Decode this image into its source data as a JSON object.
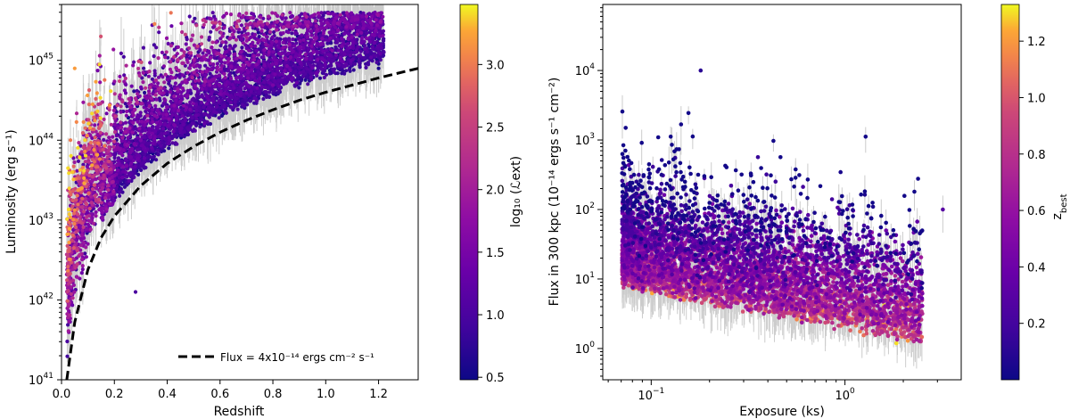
{
  "chart_data": [
    {
      "type": "scatter",
      "xlabel": "Redshift",
      "ylabel": "Luminosity (erg s⁻¹)",
      "xlim": [
        0.0,
        1.35
      ],
      "ylim_log10": [
        41,
        45.7
      ],
      "y_scale": "log",
      "x_ticks": [
        "0.0",
        "0.2",
        "0.4",
        "0.6",
        "0.8",
        "1.0",
        "1.2"
      ],
      "x_tick_values": [
        0,
        0.2,
        0.4,
        0.6,
        0.8,
        1.0,
        1.2
      ],
      "y_ticks": [
        "10",
        "10",
        "10",
        "10",
        "10"
      ],
      "y_tick_exponents": [
        "41",
        "42",
        "43",
        "44",
        "45"
      ],
      "y_tick_values": [
        41,
        42,
        43,
        44,
        45
      ],
      "colorbar": {
        "label": "log₁₀ (ℒext)",
        "range": [
          0.48,
          3.48
        ],
        "ticks": [
          "0.5",
          "1.0",
          "1.5",
          "2.0",
          "2.5",
          "3.0"
        ],
        "tick_values": [
          0.5,
          1.0,
          1.5,
          2.0,
          2.5,
          3.0
        ],
        "colormap": "plasma"
      },
      "legend": {
        "placement": "lower-right",
        "label": "Flux = 4x10⁻¹⁴ ergs cm⁻² s⁻¹"
      },
      "flux_line_points": [
        [
          0.02,
          41.0
        ],
        [
          0.05,
          41.72
        ],
        [
          0.1,
          42.38
        ],
        [
          0.15,
          42.78
        ],
        [
          0.2,
          43.05
        ],
        [
          0.3,
          43.43
        ],
        [
          0.4,
          43.71
        ],
        [
          0.5,
          43.92
        ],
        [
          0.6,
          44.1
        ],
        [
          0.7,
          44.25
        ],
        [
          0.8,
          44.38
        ],
        [
          0.9,
          44.5
        ],
        [
          1.0,
          44.6
        ],
        [
          1.1,
          44.69
        ],
        [
          1.2,
          44.78
        ],
        [
          1.3,
          44.86
        ],
        [
          1.35,
          44.9
        ]
      ],
      "points_description": "~ thousands of cluster detections",
      "sample_points": [
        [
          0.05,
          42.8,
          1.2
        ],
        [
          0.1,
          43.5,
          2.0
        ],
        [
          0.15,
          44.2,
          2.8
        ],
        [
          0.3,
          44.0,
          1.5
        ],
        [
          0.5,
          44.4,
          1.0
        ],
        [
          0.8,
          44.7,
          0.7
        ],
        [
          1.2,
          44.9,
          0.6
        ],
        [
          0.28,
          42.1,
          1.0
        ],
        [
          0.05,
          44.9,
          3.2
        ]
      ]
    },
    {
      "type": "scatter",
      "xlabel": "Exposure (ks)",
      "ylabel": "Flux in 300 kpc (10⁻¹⁴ ergs s⁻¹ cm⁻²)",
      "x_scale": "log",
      "y_scale": "log",
      "xlim_log10": [
        -1.25,
        0.6
      ],
      "ylim_log10": [
        -0.45,
        4.95
      ],
      "x_ticks": [
        "10",
        "10"
      ],
      "x_tick_exponents": [
        "−1",
        "0"
      ],
      "x_tick_values": [
        -1,
        0
      ],
      "y_ticks": [
        "10",
        "10",
        "10",
        "10",
        "10"
      ],
      "y_tick_exponents": [
        "0",
        "1",
        "2",
        "3",
        "4"
      ],
      "y_tick_values": [
        0,
        1,
        2,
        3,
        4
      ],
      "colorbar": {
        "label": "z",
        "label_sub": "best",
        "range": [
          0.0,
          1.33
        ],
        "ticks": [
          "0.2",
          "0.4",
          "0.6",
          "0.8",
          "1.0",
          "1.2"
        ],
        "tick_values": [
          0.2,
          0.4,
          0.6,
          0.8,
          1.0,
          1.2
        ],
        "colormap": "plasma"
      },
      "points_description": "~ thousands of cluster detections",
      "sample_points": [
        [
          0.1,
          2.0,
          0.2
        ],
        [
          0.18,
          4.0,
          0.1
        ],
        [
          0.3,
          1.5,
          0.3
        ],
        [
          0.5,
          1.0,
          0.5
        ],
        [
          1.0,
          0.5,
          0.6
        ],
        [
          2.0,
          0.3,
          0.8
        ],
        [
          3.2,
          2.0,
          0.3
        ],
        [
          0.15,
          0.85,
          0.8
        ]
      ]
    }
  ]
}
